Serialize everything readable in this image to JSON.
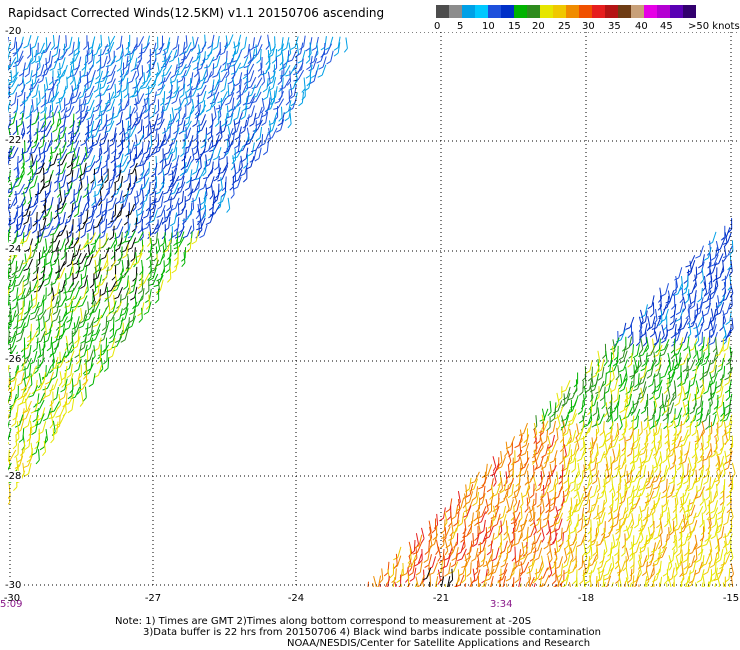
{
  "title": "Rapidsact Corrected Winds(12.5KM) v1.1 20150706 ascending",
  "legend": {
    "colors": [
      "#4d4d4d",
      "#8c8c8c",
      "#00a0e6",
      "#00c8ff",
      "#1e50dc",
      "#0030c8",
      "#00b400",
      "#2e8b1e",
      "#e6e600",
      "#f0c800",
      "#f08c00",
      "#f05000",
      "#e61e1e",
      "#b41414",
      "#6e3c14",
      "#c8a078",
      "#e600e6",
      "#b400d2",
      "#5a00b4",
      "#32006e"
    ],
    "labels": [
      "0",
      "5",
      "10",
      "15",
      "20",
      "25",
      "30",
      "35",
      "40",
      "45",
      ">50 knots"
    ]
  },
  "axes": {
    "y_labels": [
      "-20",
      "-22",
      "-24",
      "-26",
      "-28",
      "-30"
    ],
    "x_labels": [
      "-30",
      "-27",
      "-24",
      "-21",
      "-18",
      "-15"
    ]
  },
  "time_labels": [
    "5:09",
    "3:34"
  ],
  "notes": [
    "Note: 1) Times are GMT 2)Times along bottom correspond to measurement at -20S",
    "3)Data buffer is 22 hrs from 20150706 4) Black wind barbs indicate possible contamination",
    "NOAA/NESDIS/Center for Satellite Applications and Research"
  ]
}
